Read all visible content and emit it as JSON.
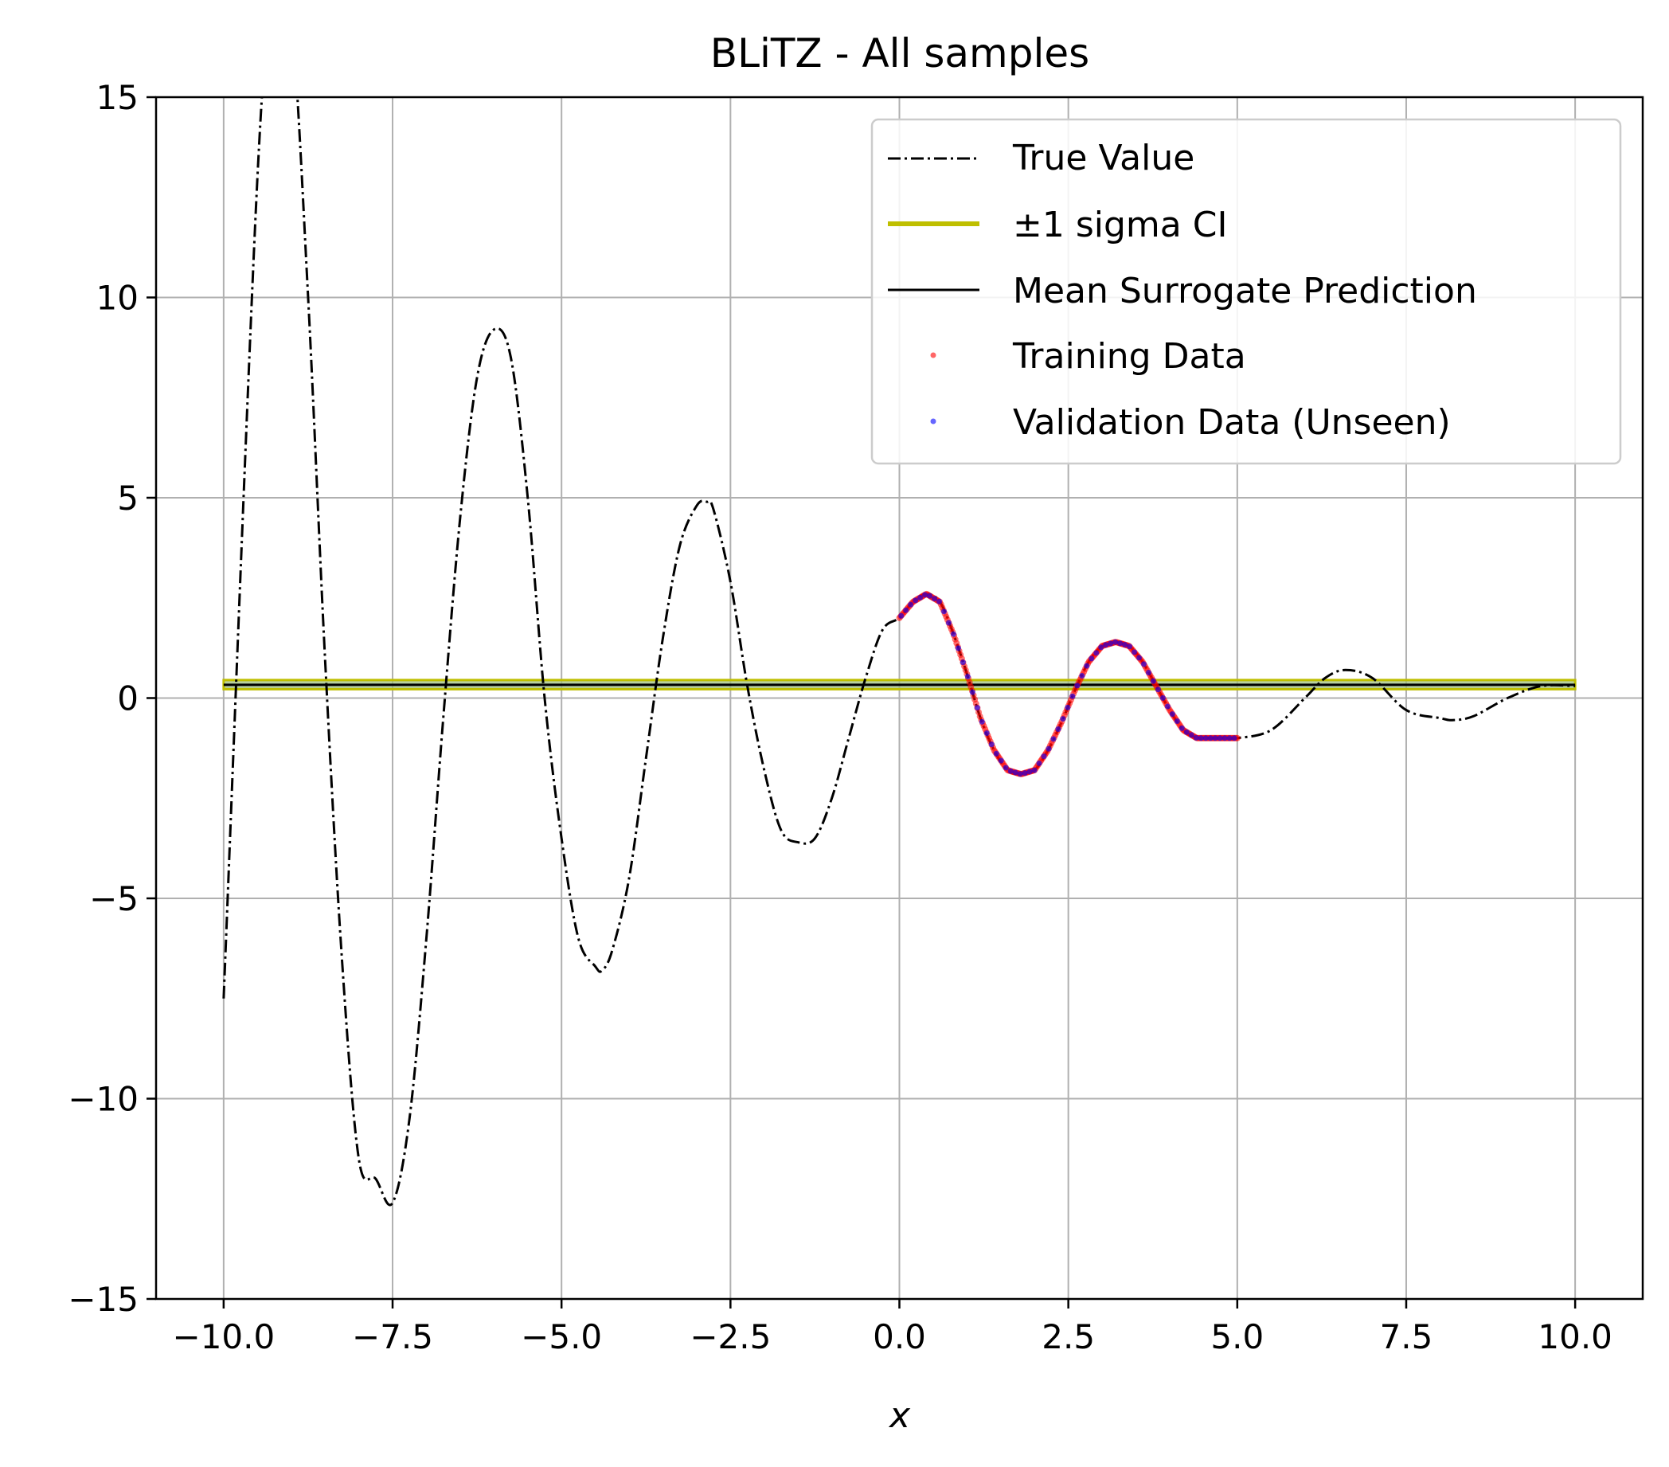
{
  "chart_data": {
    "type": "line",
    "title": "BLiTZ - All samples",
    "xlabel": "x",
    "ylabel": "",
    "xlim": [
      -11.0,
      11.0
    ],
    "ylim": [
      -15,
      15
    ],
    "xticks": [
      -10.0,
      -7.5,
      -5.0,
      -2.5,
      0.0,
      2.5,
      5.0,
      7.5,
      10.0
    ],
    "xtick_labels": [
      "−10.0",
      "−7.5",
      "−5.0",
      "−2.5",
      "0.0",
      "2.5",
      "5.0",
      "7.5",
      "10.0"
    ],
    "yticks": [
      -15,
      -10,
      -5,
      0,
      5,
      10,
      15
    ],
    "ytick_labels": [
      "−15",
      "−10",
      "−5",
      "0",
      "5",
      "10",
      "15"
    ],
    "grid": true,
    "legend_position": "top-right",
    "series": [
      {
        "name": "True Value",
        "kind": "line",
        "style": "dashdot",
        "color": "#000000",
        "x": [
          -10.0,
          -9.5,
          -9.25,
          -9.0,
          -8.75,
          -8.5,
          -8.25,
          -8.0,
          -7.75,
          -7.5,
          -7.25,
          -7.0,
          -6.75,
          -6.5,
          -6.25,
          -6.0,
          -5.75,
          -5.5,
          -5.25,
          -5.0,
          -4.75,
          -4.5,
          -4.4,
          -4.25,
          -4.0,
          -3.75,
          -3.5,
          -3.25,
          -3.0,
          -2.85,
          -2.75,
          -2.5,
          -2.25,
          -2.0,
          -1.75,
          -1.5,
          -1.25,
          -1.0,
          -0.75,
          -0.5,
          -0.25,
          0.0,
          0.2,
          0.4,
          0.6,
          0.8,
          1.0,
          1.2,
          1.4,
          1.6,
          1.8,
          2.0,
          2.2,
          2.4,
          2.6,
          2.8,
          3.0,
          3.2,
          3.4,
          3.6,
          3.8,
          4.0,
          4.2,
          4.4,
          4.6,
          4.8,
          5.0,
          5.5,
          6.0,
          6.3,
          6.6,
          7.0,
          7.5,
          8.0,
          8.2,
          8.5,
          9.0,
          9.5,
          10.0
        ],
        "y": [
          -7.5,
          13.0,
          17.5,
          17.0,
          10.0,
          1.0,
          -6.5,
          -11.5,
          -12.0,
          -12.6,
          -10.5,
          -6.0,
          -0.5,
          4.5,
          8.0,
          9.2,
          8.5,
          5.0,
          0.0,
          -3.5,
          -6.0,
          -6.7,
          -6.8,
          -6.3,
          -4.5,
          -1.5,
          1.5,
          3.8,
          4.8,
          4.9,
          4.7,
          2.9,
          0.3,
          -1.8,
          -3.3,
          -3.6,
          -3.5,
          -2.5,
          -1.0,
          0.5,
          1.7,
          2.0,
          2.4,
          2.6,
          2.4,
          1.6,
          0.6,
          -0.5,
          -1.3,
          -1.8,
          -1.9,
          -1.8,
          -1.3,
          -0.6,
          0.2,
          0.9,
          1.3,
          1.4,
          1.3,
          0.9,
          0.3,
          -0.3,
          -0.8,
          -1.0,
          -1.0,
          -1.0,
          -1.0,
          -0.8,
          0.0,
          0.5,
          0.7,
          0.5,
          -0.3,
          -0.5,
          -0.55,
          -0.45,
          0.0,
          0.3,
          0.3
        ]
      },
      {
        "name": "±1 sigma CI",
        "kind": "band",
        "color": "#bfbf00",
        "x": [
          -10.0,
          10.0
        ],
        "lower": [
          0.22,
          0.22
        ],
        "upper": [
          0.45,
          0.45
        ]
      },
      {
        "name": "Mean Surrogate Prediction",
        "kind": "line",
        "style": "solid",
        "color": "#000000",
        "x": [
          -10.0,
          10.0
        ],
        "y": [
          0.33,
          0.33
        ]
      },
      {
        "name": "Training Data",
        "kind": "scatter",
        "color": "#ff0000",
        "x_range": [
          0.0,
          5.0
        ]
      },
      {
        "name": "Validation Data (Unseen)",
        "kind": "scatter",
        "color": "#0000ff",
        "x_range": [
          0.0,
          5.0
        ]
      }
    ]
  }
}
